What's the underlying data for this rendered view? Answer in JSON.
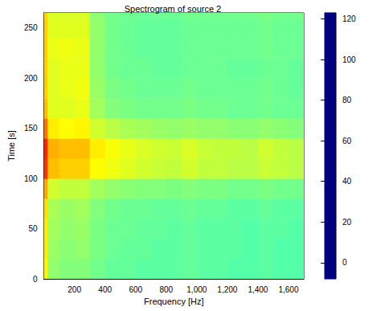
{
  "chart_data": {
    "type": "heatmap",
    "title": "Spectrogram of source 2",
    "x_label": "Frequency [Hz]",
    "y_label": "Time [s]",
    "xlim": [
      0,
      1700
    ],
    "ylim": [
      0,
      265
    ],
    "xticks": [
      200,
      400,
      600,
      800,
      1000,
      1200,
      1400,
      1600
    ],
    "yticks": [
      0,
      50,
      100,
      150,
      200,
      250
    ],
    "grid": false,
    "x_edges": [
      0,
      25,
      100,
      200,
      300,
      400,
      500,
      600,
      700,
      800,
      900,
      1000,
      1100,
      1200,
      1300,
      1400,
      1500,
      1600,
      1700
    ],
    "y_edges": [
      0,
      20,
      40,
      60,
      80,
      100,
      120,
      140,
      160,
      180,
      200,
      220,
      240,
      260,
      265
    ],
    "cells": [
      [
        75,
        60,
        58,
        58,
        56,
        54,
        54,
        53,
        53,
        53,
        54,
        53,
        53,
        52,
        52,
        53,
        52,
        52
      ],
      [
        76,
        61,
        59,
        60,
        57,
        55,
        54,
        54,
        53,
        53,
        54,
        53,
        53,
        53,
        52,
        53,
        52,
        52
      ],
      [
        76,
        62,
        60,
        61,
        57,
        55,
        55,
        54,
        54,
        53,
        54,
        53,
        53,
        53,
        52,
        53,
        53,
        52
      ],
      [
        78,
        63,
        61,
        62,
        58,
        56,
        55,
        55,
        54,
        54,
        55,
        54,
        54,
        53,
        53,
        54,
        53,
        53
      ],
      [
        85,
        68,
        66,
        66,
        62,
        60,
        59,
        58,
        58,
        57,
        58,
        57,
        57,
        56,
        56,
        57,
        56,
        56
      ],
      [
        100,
        82,
        80,
        80,
        74,
        72,
        70,
        68,
        67,
        66,
        68,
        66,
        66,
        65,
        65,
        67,
        66,
        65
      ],
      [
        102,
        84,
        82,
        82,
        76,
        73,
        71,
        69,
        68,
        67,
        69,
        67,
        66,
        66,
        65,
        68,
        66,
        65
      ],
      [
        92,
        76,
        74,
        75,
        68,
        65,
        63,
        62,
        61,
        60,
        61,
        60,
        60,
        59,
        59,
        60,
        59,
        58
      ],
      [
        82,
        70,
        70,
        71,
        62,
        58,
        57,
        56,
        56,
        56,
        57,
        56,
        56,
        55,
        55,
        56,
        55,
        55
      ],
      [
        80,
        70,
        71,
        72,
        61,
        57,
        56,
        55,
        55,
        55,
        56,
        55,
        55,
        55,
        55,
        56,
        55,
        54
      ],
      [
        80,
        70,
        71,
        71,
        60,
        56,
        55,
        55,
        54,
        54,
        55,
        55,
        55,
        54,
        54,
        55,
        55,
        54
      ],
      [
        80,
        71,
        72,
        71,
        60,
        56,
        55,
        54,
        54,
        54,
        55,
        55,
        55,
        55,
        55,
        56,
        55,
        55
      ],
      [
        80,
        70,
        70,
        70,
        60,
        56,
        55,
        54,
        54,
        54,
        55,
        55,
        55,
        55,
        55,
        56,
        55,
        55
      ],
      [
        79,
        69,
        69,
        69,
        59,
        56,
        55,
        55,
        55,
        55,
        56,
        56,
        56,
        56,
        56,
        57,
        56,
        56
      ]
    ],
    "colorbar_range": [
      -8,
      123
    ],
    "colorbar_ticks": [
      0,
      20,
      40,
      60,
      80,
      100,
      120
    ]
  }
}
